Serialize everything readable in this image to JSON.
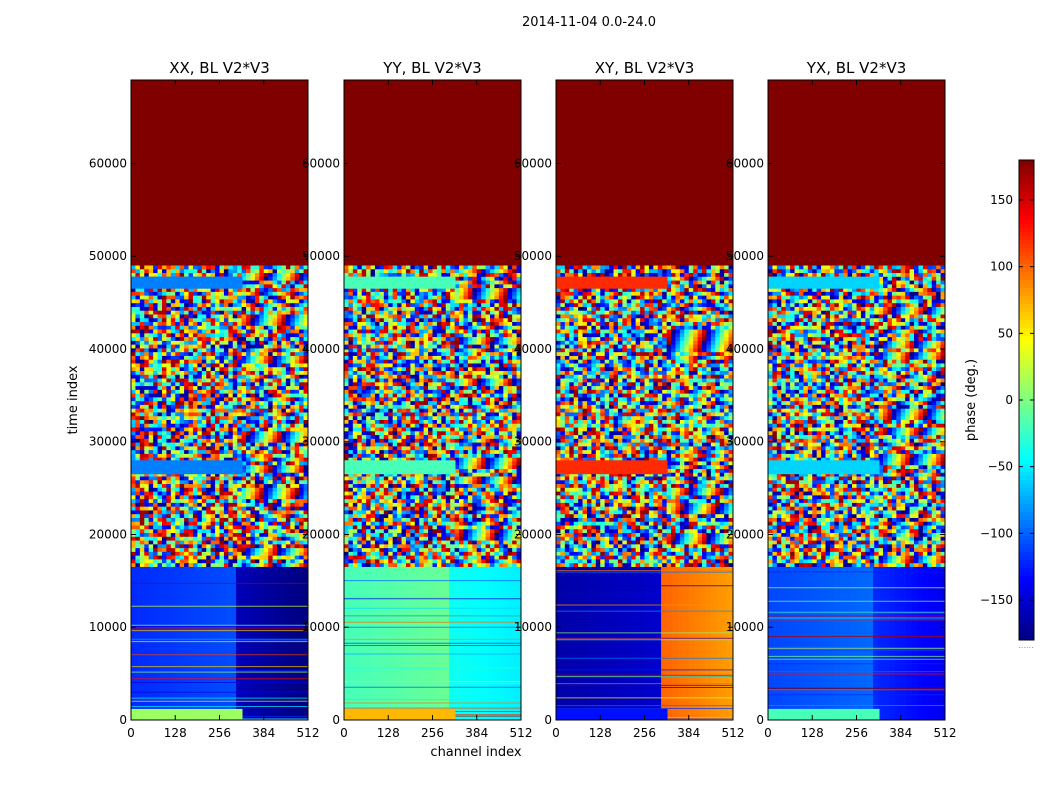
{
  "chart_data": {
    "type": "heatmap",
    "suptitle": "2014-11-04 0.0-24.0",
    "xlabel": "channel index",
    "ylabel": "time index",
    "xlim": [
      0,
      512
    ],
    "ylim": [
      0,
      69000
    ],
    "xticks": [
      0,
      128,
      256,
      384,
      512
    ],
    "yticks": [
      0,
      10000,
      20000,
      30000,
      40000,
      50000,
      60000
    ],
    "colorbar": {
      "label": "phase (deg.)",
      "range": [
        -180,
        180
      ],
      "ticks": [
        150,
        100,
        50,
        0,
        -50,
        -100,
        -150
      ],
      "tick_labels": [
        "150",
        "100",
        "50",
        "0",
        "−50",
        "−100",
        "−150"
      ],
      "colormap": "jet"
    },
    "panels": [
      {
        "title": "XX, BL V2*V3",
        "base_phase": -120,
        "low_band_tail": [
          -160,
          -180
        ],
        "strip_phase": -90,
        "bottom_phase": 10
      },
      {
        "title": "YY, BL V2*V3",
        "base_phase": -20,
        "low_band_tail": [
          -40,
          -50
        ],
        "strip_phase": -20,
        "bottom_phase": 70
      },
      {
        "title": "XY, BL V2*V3",
        "base_phase": -165,
        "low_band_tail": [
          100,
          80
        ],
        "strip_phase": 120,
        "bottom_phase": -130
      },
      {
        "title": "YX, BL V2*V3",
        "base_phase": -110,
        "low_band_tail": [
          -120,
          -140
        ],
        "strip_phase": -60,
        "bottom_phase": -20
      }
    ],
    "segments": [
      {
        "from": 49000,
        "to": 69000,
        "kind": "flagged",
        "phase": 180
      },
      {
        "from": 16500,
        "to": 49000,
        "kind": "noisy"
      },
      {
        "from": 46500,
        "to": 47800,
        "kind": "strip"
      },
      {
        "from": 26500,
        "to": 28000,
        "kind": "strip"
      },
      {
        "from": 0,
        "to": 16500,
        "kind": "coherent"
      }
    ],
    "extra_mark": "......"
  }
}
